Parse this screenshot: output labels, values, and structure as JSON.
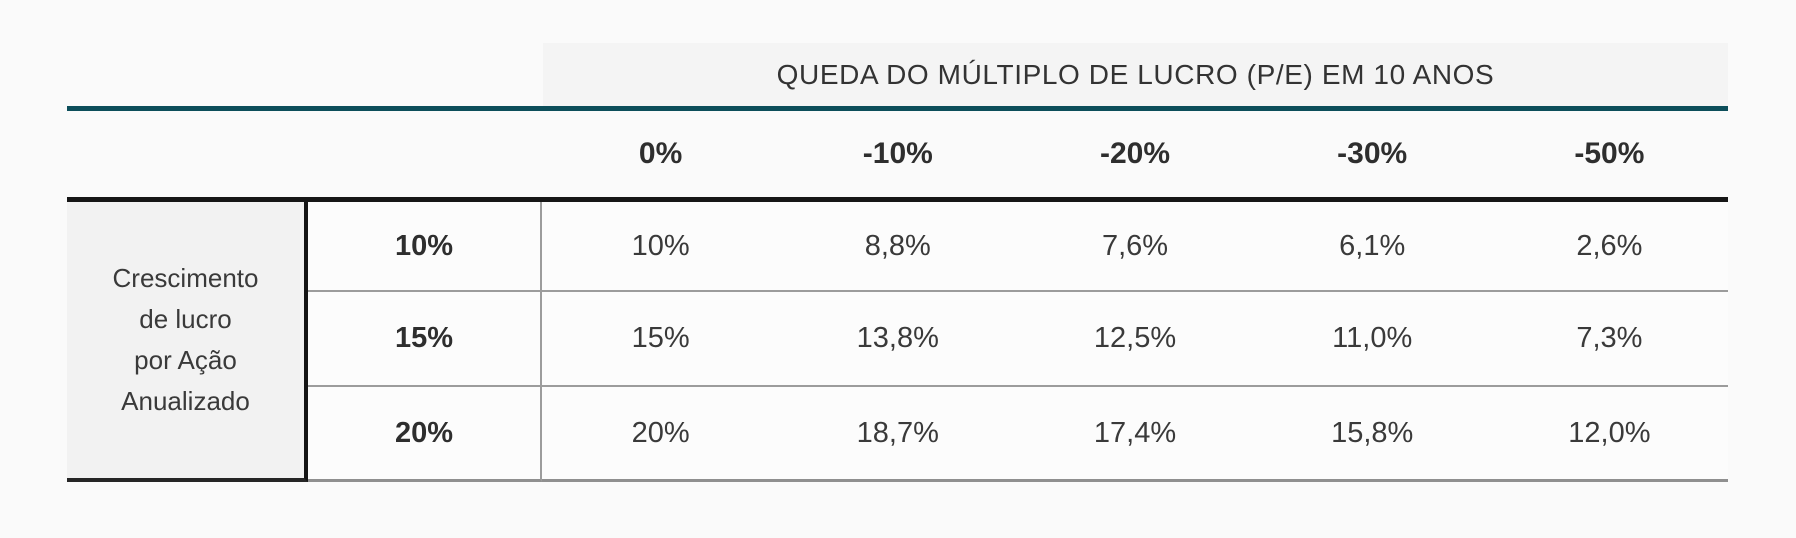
{
  "colors": {
    "accent_teal": "#0C4E5A",
    "rule_black": "#161616",
    "divider_gray": "#9C9C9C",
    "label_cell_bg": "#F2F2F2",
    "title_strip_bg": "#F4F4F4"
  },
  "row_axis": {
    "line1": "Crescimento",
    "line2": "de lucro",
    "line3": "por Ação",
    "line4": "Anualizado"
  },
  "chart_data": {
    "type": "table",
    "title": "QUEDA DO MÚLTIPLO DE LUCRO (P/E) EM 10 ANOS",
    "row_axis_label": "Crescimento de lucro por Ação Anualizado",
    "columns": [
      "0%",
      "-10%",
      "-20%",
      "-30%",
      "-50%"
    ],
    "rows": [
      {
        "label": "10%",
        "values": [
          "10%",
          "8,8%",
          "7,6%",
          "6,1%",
          "2,6%"
        ]
      },
      {
        "label": "15%",
        "values": [
          "15%",
          "13,8%",
          "12,5%",
          "11,0%",
          "7,3%"
        ]
      },
      {
        "label": "20%",
        "values": [
          "20%",
          "18,7%",
          "17,4%",
          "15,8%",
          "12,0%"
        ]
      }
    ]
  }
}
